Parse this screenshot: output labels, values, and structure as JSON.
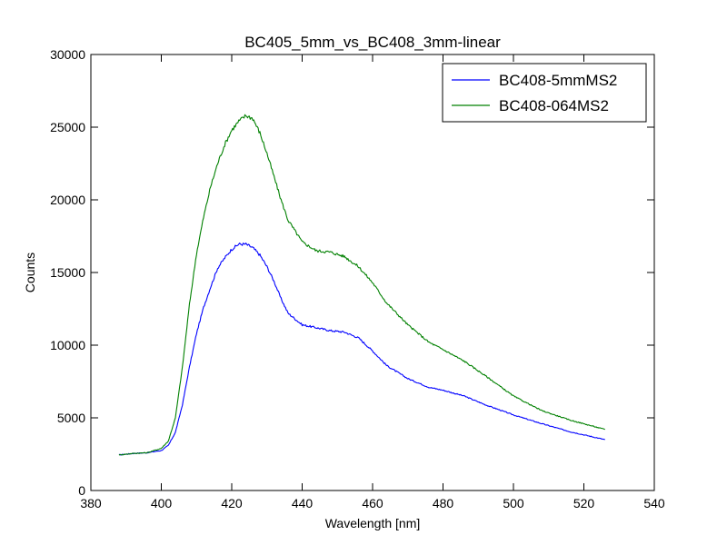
{
  "chart_data": {
    "type": "line",
    "title": "BC405_5mm_vs_BC408_3mm-linear",
    "xlabel": "Wavelength [nm]",
    "ylabel": "Counts",
    "xlim": [
      380,
      540
    ],
    "ylim": [
      0,
      30000
    ],
    "xticks": [
      380,
      400,
      420,
      440,
      460,
      480,
      500,
      520,
      540
    ],
    "yticks": [
      0,
      5000,
      10000,
      15000,
      20000,
      25000,
      30000
    ],
    "grid": false,
    "legend_position": "top-right",
    "series": [
      {
        "name": "BC408-5mmMS2",
        "color": "#0000ff",
        "x": [
          388,
          392,
          396,
          400,
          402,
          404,
          406,
          408,
          410,
          412,
          414,
          416,
          418,
          420,
          422,
          424,
          426,
          428,
          430,
          432,
          434,
          436,
          440,
          444,
          448,
          452,
          456,
          460,
          464,
          470,
          476,
          480,
          486,
          492,
          500,
          508,
          516,
          526
        ],
        "y": [
          2450,
          2550,
          2600,
          2750,
          3100,
          4000,
          5900,
          8500,
          10800,
          12600,
          14000,
          15300,
          16000,
          16600,
          16950,
          16950,
          16700,
          16200,
          15400,
          14400,
          13200,
          12200,
          11400,
          11200,
          11000,
          10900,
          10500,
          9600,
          8600,
          7700,
          7100,
          6900,
          6500,
          5900,
          5200,
          4600,
          4050,
          3500
        ]
      },
      {
        "name": "BC408-064MS2",
        "color": "#008000",
        "x": [
          388,
          392,
          396,
          400,
          402,
          404,
          406,
          408,
          410,
          412,
          414,
          416,
          418,
          420,
          422,
          424,
          426,
          428,
          430,
          432,
          434,
          436,
          440,
          444,
          448,
          452,
          456,
          460,
          464,
          470,
          476,
          480,
          486,
          492,
          500,
          508,
          516,
          526
        ],
        "y": [
          2450,
          2550,
          2600,
          2900,
          3400,
          5000,
          8500,
          12800,
          16300,
          18800,
          20900,
          22500,
          23800,
          24800,
          25400,
          25800,
          25600,
          24600,
          23200,
          21600,
          20000,
          18600,
          17100,
          16500,
          16400,
          16100,
          15400,
          14300,
          12900,
          11400,
          10200,
          9700,
          8900,
          7900,
          6500,
          5500,
          4850,
          4200
        ]
      }
    ]
  }
}
